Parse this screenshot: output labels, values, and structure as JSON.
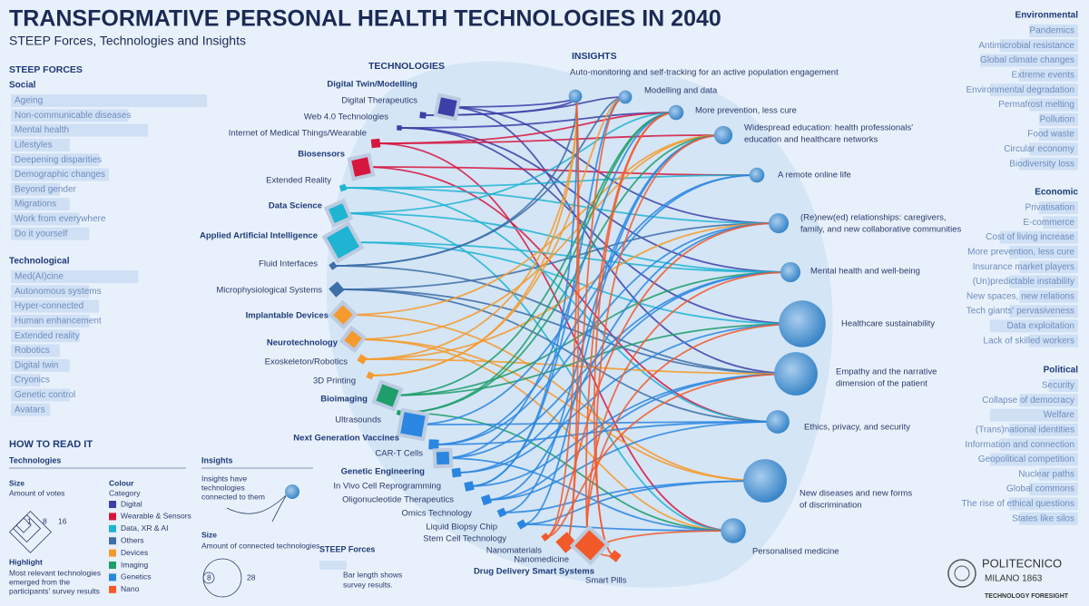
{
  "header": {
    "title": "TRANSFORMATIVE PERSONAL HEALTH TECHNOLOGIES IN 2040",
    "subtitle": "STEEP Forces, Technologies and Insights"
  },
  "steep_forces": {
    "heading": "STEEP FORCES",
    "groups": [
      {
        "name": "Social",
        "side": "left",
        "items": [
          {
            "label": "Ageing",
            "score": 100
          },
          {
            "label": "Non-communicable diseases",
            "score": 60
          },
          {
            "label": "Mental health",
            "score": 70
          },
          {
            "label": "Lifestyles",
            "score": 30
          },
          {
            "label": "Deepening disparities",
            "score": 45
          },
          {
            "label": "Demographic changes",
            "score": 50
          },
          {
            "label": "Beyond gender",
            "score": 25
          },
          {
            "label": "Migrations",
            "score": 30
          },
          {
            "label": "Work from everywhere",
            "score": 35
          },
          {
            "label": "Do it yourself",
            "score": 40
          }
        ]
      },
      {
        "name": "Technological",
        "side": "left",
        "items": [
          {
            "label": "Med(AI)cine",
            "score": 65
          },
          {
            "label": "Autonomous systems",
            "score": 40
          },
          {
            "label": "Hyper-connected",
            "score": 45
          },
          {
            "label": "Human enhancement",
            "score": 40
          },
          {
            "label": "Extended reality",
            "score": 35
          },
          {
            "label": "Robotics",
            "score": 25
          },
          {
            "label": "Digital twin",
            "score": 30
          },
          {
            "label": "Cryonics",
            "score": 15
          },
          {
            "label": "Genetic control",
            "score": 30
          },
          {
            "label": "Avatars",
            "score": 20
          }
        ]
      },
      {
        "name": "Environmental",
        "side": "right",
        "items": [
          {
            "label": "Pandemics",
            "score": 25
          },
          {
            "label": "Antimicrobial resistance",
            "score": 40
          },
          {
            "label": "Global climate changes",
            "score": 50
          },
          {
            "label": "Extreme events",
            "score": 30
          },
          {
            "label": "Environmental degradation",
            "score": 45
          },
          {
            "label": "Permafrost melting",
            "score": 25
          },
          {
            "label": "Pollution",
            "score": 20
          },
          {
            "label": "Food waste",
            "score": 20
          },
          {
            "label": "Circular economy",
            "score": 25
          },
          {
            "label": "Biodiversity loss",
            "score": 30
          }
        ]
      },
      {
        "name": "Economic",
        "side": "right",
        "items": [
          {
            "label": "Privatisation",
            "score": 20
          },
          {
            "label": "E-commerce",
            "score": 18
          },
          {
            "label": "Cost of living increase",
            "score": 40
          },
          {
            "label": "More prevention, less cure",
            "score": 35
          },
          {
            "label": "Insurance market players",
            "score": 30
          },
          {
            "label": "(Un)predictable instability",
            "score": 35
          },
          {
            "label": "New spaces, new relations",
            "score": 30
          },
          {
            "label": "Tech giants' pervasiveness",
            "score": 35
          },
          {
            "label": "Data exploitation",
            "score": 45
          },
          {
            "label": "Lack of skilled workers",
            "score": 25
          }
        ]
      },
      {
        "name": "Political",
        "side": "right",
        "items": [
          {
            "label": "Security",
            "score": 15
          },
          {
            "label": "Collapse of democracy",
            "score": 30
          },
          {
            "label": "Welfare",
            "score": 45
          },
          {
            "label": "(Trans)national identities",
            "score": 35
          },
          {
            "label": "Information and connection",
            "score": 40
          },
          {
            "label": "Geopolitical competition",
            "score": 45
          },
          {
            "label": "Nuclear paths",
            "score": 20
          },
          {
            "label": "Global commons",
            "score": 25
          },
          {
            "label": "The rise of ethical questions",
            "score": 35
          },
          {
            "label": "States like silos",
            "score": 30
          }
        ]
      }
    ]
  },
  "technologies": {
    "heading": "TECHNOLOGIES",
    "categories": [
      {
        "name": "Digital",
        "color": "#3b3fa8"
      },
      {
        "name": "Wearable & Sensors",
        "color": "#d6163f"
      },
      {
        "name": "Data, XR & AI",
        "color": "#1fb4d2"
      },
      {
        "name": "Others",
        "color": "#3d6fa8"
      },
      {
        "name": "Devices",
        "color": "#f59a2c"
      },
      {
        "name": "Imaging",
        "color": "#1d9e6a"
      },
      {
        "name": "Genetics",
        "color": "#2a86e0"
      },
      {
        "name": "Nano",
        "color": "#f25a2a"
      }
    ],
    "items": [
      {
        "label": "Digital Twin/Modelling",
        "category": "Digital",
        "votes": 10,
        "highlight": true
      },
      {
        "label": "Digital Therapeutics",
        "category": "Digital",
        "votes": 2,
        "highlight": false
      },
      {
        "label": "Web 4.0 Technologies",
        "category": "Digital",
        "votes": 1,
        "highlight": false
      },
      {
        "label": "Internet of Medical Things/Wearable",
        "category": "Wearable & Sensors",
        "votes": 4,
        "highlight": false
      },
      {
        "label": "Biosensors",
        "category": "Wearable & Sensors",
        "votes": 10,
        "highlight": true
      },
      {
        "label": "Extended Reality",
        "category": "Data, XR & AI",
        "votes": 2,
        "highlight": false
      },
      {
        "label": "Data Science",
        "category": "Data, XR & AI",
        "votes": 9,
        "highlight": true
      },
      {
        "label": "Applied Artificial Intelligence",
        "category": "Data, XR & AI",
        "votes": 16,
        "highlight": true
      },
      {
        "label": "Fluid Interfaces",
        "category": "Others",
        "votes": 2,
        "highlight": false
      },
      {
        "label": "Microphysiological Systems",
        "category": "Others",
        "votes": 6,
        "highlight": false
      },
      {
        "label": "Implantable Devices",
        "category": "Devices",
        "votes": 8,
        "highlight": true
      },
      {
        "label": "Neurotechnology",
        "category": "Devices",
        "votes": 7,
        "highlight": true
      },
      {
        "label": "Exoskeleton/Robotics",
        "category": "Devices",
        "votes": 3,
        "highlight": false
      },
      {
        "label": "3D Printing",
        "category": "Devices",
        "votes": 2,
        "highlight": false
      },
      {
        "label": "Bioimaging",
        "category": "Imaging",
        "votes": 11,
        "highlight": true
      },
      {
        "label": "Ultrasounds",
        "category": "Imaging",
        "votes": 1,
        "highlight": false
      },
      {
        "label": "Next Generation Vaccines",
        "category": "Genetics",
        "votes": 14,
        "highlight": true
      },
      {
        "label": "CAR-T Cells",
        "category": "Genetics",
        "votes": 5,
        "highlight": false
      },
      {
        "label": "Genetic Engineering",
        "category": "Genetics",
        "votes": 7,
        "highlight": true
      },
      {
        "label": "In Vivo Cell Reprogramming",
        "category": "Genetics",
        "votes": 4,
        "highlight": false
      },
      {
        "label": "Oligonucleotide Therapeutics",
        "category": "Genetics",
        "votes": 4,
        "highlight": false
      },
      {
        "label": "Omics Technology",
        "category": "Genetics",
        "votes": 4,
        "highlight": false
      },
      {
        "label": "Liquid Biopsy Chip",
        "category": "Genetics",
        "votes": 3,
        "highlight": false
      },
      {
        "label": "Stem Cell Technology",
        "category": "Genetics",
        "votes": 3,
        "highlight": false
      },
      {
        "label": "Nanomaterials",
        "category": "Nano",
        "votes": 2,
        "highlight": false
      },
      {
        "label": "Nanomedicine",
        "category": "Nano",
        "votes": 9,
        "highlight": false
      },
      {
        "label": "Drug Delivery Smart Systems",
        "category": "Nano",
        "votes": 14,
        "highlight": true
      },
      {
        "label": "Smart Pills",
        "category": "Nano",
        "votes": 4,
        "highlight": false
      }
    ]
  },
  "insights": {
    "heading": "INSIGHTS",
    "items": [
      {
        "label": [
          "Auto-monitoring and self-tracking for an active population engagement"
        ],
        "technologies": 8
      },
      {
        "label": [
          "Modelling and data"
        ],
        "technologies": 8
      },
      {
        "label": [
          "More prevention, less cure"
        ],
        "technologies": 9
      },
      {
        "label": [
          "Widespread education: health professionals'",
          "education and healthcare networks"
        ],
        "technologies": 11
      },
      {
        "label": [
          "A remote online life"
        ],
        "technologies": 9
      },
      {
        "label": [
          "(Re)new(ed) relationships: caregivers,",
          "family, and new collaborative communities"
        ],
        "technologies": 12
      },
      {
        "label": [
          "Mental health and well-being"
        ],
        "technologies": 12
      },
      {
        "label": [
          "Healthcare sustainability"
        ],
        "technologies": 28
      },
      {
        "label": [
          "Empathy and the narrative",
          "dimension of the patient"
        ],
        "technologies": 26
      },
      {
        "label": [
          "Ethics, privacy, and security"
        ],
        "technologies": 14
      },
      {
        "label": [
          "New diseases and new forms",
          "of discrimination"
        ],
        "technologies": 26
      },
      {
        "label": [
          "Personalised medicine"
        ],
        "technologies": 15
      }
    ]
  },
  "legend": {
    "heading": "HOW TO READ IT",
    "technologies": {
      "heading": "Technologies",
      "size_title": "Size",
      "size_text": "Amount of votes",
      "size_scale": [
        1,
        8,
        16
      ],
      "highlight_title": "Highlight",
      "highlight_text": [
        "Most relevant technologies",
        "emerged from the",
        "participants' survey results"
      ],
      "colour_title": "Colour",
      "colour_text": "Category"
    },
    "insights": {
      "heading": "Insights",
      "text": [
        "Insights have",
        "technologies",
        "connected to them"
      ],
      "size_title": "Size",
      "size_text": "Amount of connected technologies",
      "size_scale": [
        8,
        28
      ]
    },
    "steep": {
      "heading": "STEEP Forces",
      "text": [
        "Bar length shows",
        "survey results."
      ]
    }
  },
  "footer": {
    "name": "POLITECNICO",
    "city": "MILANO 1863",
    "unit": "TECHNOLOGY FORESIGHT"
  }
}
